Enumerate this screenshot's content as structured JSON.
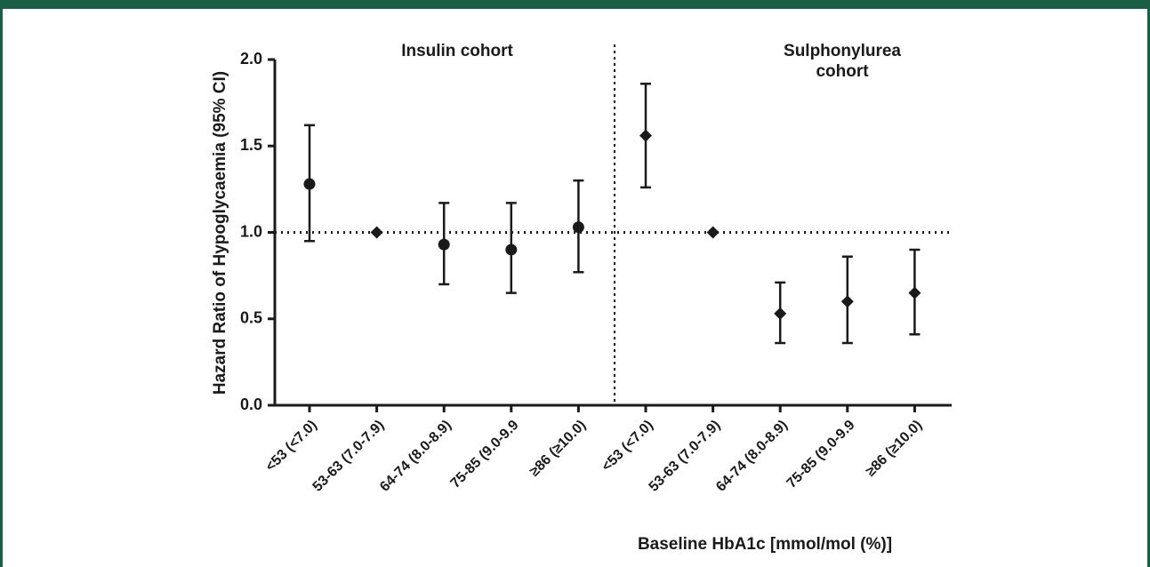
{
  "chart_data": {
    "type": "errorbar",
    "y_label": "Hazard Ratio of Hypoglycaemia (95% CI)",
    "x_label": "Baseline HbA1c [mmol/mol (%)]",
    "categories": [
      "<53 (<7.0)",
      "53-63 (7.0-7.9)",
      "64-74 (8.0-8.9)",
      "75-85 (9.0-9.9",
      "≥86 (≥10.0)",
      "<53 (<7.0)",
      "53-63 (7.0-7.9)",
      "64-74 (8.0-8.9)",
      "75-85 (9.0-9.9",
      "≥86 (≥10.0)"
    ],
    "series": [
      {
        "name": "Insulin cohort",
        "color": "#1a1a1a",
        "values": [
          1.28,
          1.0,
          0.93,
          0.9,
          1.03,
          null,
          null,
          null,
          null,
          null
        ],
        "lower": [
          0.95,
          null,
          0.7,
          0.65,
          0.77,
          null,
          null,
          null,
          null,
          null
        ],
        "upper": [
          1.62,
          null,
          1.17,
          1.17,
          1.3,
          null,
          null,
          null,
          null,
          null
        ],
        "markers": [
          "circle",
          "diamond",
          "circle",
          "circle",
          "circle",
          null,
          null,
          null,
          null,
          null
        ]
      },
      {
        "name": "Sulphonylurea cohort",
        "color": "#1a1a1a",
        "values": [
          null,
          null,
          null,
          null,
          null,
          1.56,
          1.0,
          0.53,
          0.6,
          0.65
        ],
        "lower": [
          null,
          null,
          null,
          null,
          null,
          1.26,
          null,
          0.36,
          0.36,
          0.41
        ],
        "upper": [
          null,
          null,
          null,
          null,
          null,
          1.86,
          null,
          0.71,
          0.86,
          0.9
        ],
        "markers": [
          null,
          null,
          null,
          null,
          null,
          "diamond",
          "diamond",
          "diamond",
          "diamond",
          "diamond"
        ]
      }
    ],
    "ylim": [
      0,
      2
    ],
    "yticks": [
      {
        "value": 0,
        "label": "0.0"
      },
      {
        "value": 0.5,
        "label": "0.5"
      },
      {
        "value": 1,
        "label": "1.0"
      },
      {
        "value": 1.5,
        "label": "1.5"
      },
      {
        "value": 2,
        "label": "2.0"
      }
    ],
    "reference_line": 1
  }
}
